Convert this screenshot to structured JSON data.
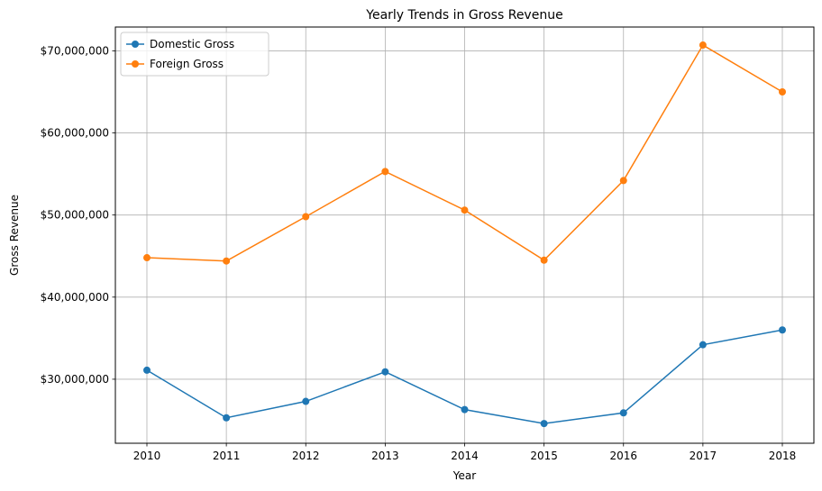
{
  "chart_data": {
    "type": "line",
    "title": "Yearly Trends in Gross Revenue",
    "xlabel": "Year",
    "ylabel": "Gross Revenue",
    "categories": [
      "2010",
      "2011",
      "2012",
      "2013",
      "2014",
      "2015",
      "2016",
      "2017",
      "2018"
    ],
    "ylim": [
      22200000,
      72900000
    ],
    "yticks": [
      30000000,
      40000000,
      50000000,
      60000000,
      70000000
    ],
    "ytick_labels": [
      "$30,000,000",
      "$40,000,000",
      "$50,000,000",
      "$60,000,000",
      "$70,000,000"
    ],
    "grid": true,
    "legend_position": "upper-left",
    "series": [
      {
        "name": "Domestic Gross",
        "color": "#1f77b4",
        "values": [
          31100000,
          25300000,
          27300000,
          30900000,
          26300000,
          24600000,
          25900000,
          34200000,
          36000000
        ]
      },
      {
        "name": "Foreign Gross",
        "color": "#ff7f0e",
        "values": [
          44800000,
          44400000,
          49800000,
          55300000,
          50600000,
          44500000,
          54200000,
          70700000,
          65000000
        ]
      }
    ]
  }
}
